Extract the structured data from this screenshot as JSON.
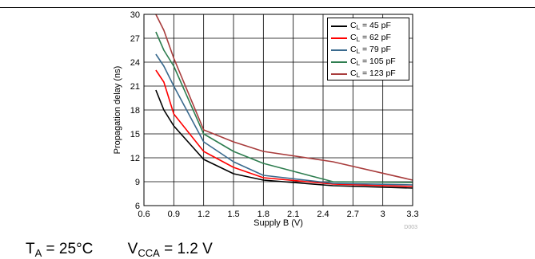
{
  "conditions": {
    "ta_label": "T",
    "ta_sub": "A",
    "ta_value": " = 25°C",
    "vcca_label": "V",
    "vcca_sub": "CCA",
    "vcca_value": " = 1.2 V"
  },
  "chart_data": {
    "type": "line",
    "title": "",
    "xlabel": "Supply B (V)",
    "ylabel": "Propagation delay (ns)",
    "xlim": [
      0.6,
      3.3
    ],
    "ylim": [
      6,
      30
    ],
    "xticks": [
      "0.6",
      "0.9",
      "1.2",
      "1.5",
      "1.8",
      "2.1",
      "2.4",
      "2.7",
      "3",
      "3.3"
    ],
    "yticks": [
      "6",
      "9",
      "12",
      "15",
      "18",
      "21",
      "24",
      "27",
      "30"
    ],
    "grid": true,
    "legend_position": "top-right",
    "figure_id": "D003",
    "series": [
      {
        "legend_prefix": "C",
        "legend_sub": "L",
        "legend_value": " = 45 pF",
        "color": "#000000",
        "x": [
          0.72,
          0.8,
          0.9,
          1.2,
          1.5,
          1.8,
          2.5,
          3.3
        ],
        "y": [
          20.5,
          18.0,
          16.0,
          11.8,
          10.0,
          9.2,
          8.5,
          8.2
        ]
      },
      {
        "legend_prefix": "C",
        "legend_sub": "L",
        "legend_value": " = 62 pF",
        "color": "#ff0000",
        "x": [
          0.72,
          0.8,
          0.9,
          1.2,
          1.5,
          1.8,
          2.5,
          3.3
        ],
        "y": [
          23.0,
          21.5,
          17.5,
          12.8,
          10.8,
          9.5,
          8.7,
          8.4
        ]
      },
      {
        "legend_prefix": "C",
        "legend_sub": "L",
        "legend_value": " = 79 pF",
        "color": "#3a6a8e",
        "x": [
          0.72,
          0.8,
          0.9,
          1.2,
          1.5,
          1.8,
          2.5,
          3.3
        ],
        "y": [
          25.0,
          23.5,
          21.0,
          14.0,
          11.5,
          9.8,
          8.8,
          8.6
        ]
      },
      {
        "legend_prefix": "C",
        "legend_sub": "L",
        "legend_value": " = 105 pF",
        "color": "#2e7d4f",
        "x": [
          0.72,
          0.8,
          0.9,
          1.2,
          1.5,
          1.8,
          2.5,
          3.3
        ],
        "y": [
          27.8,
          25.5,
          23.5,
          15.0,
          12.8,
          11.3,
          9.0,
          8.9
        ]
      },
      {
        "legend_prefix": "C",
        "legend_sub": "L",
        "legend_value": " = 123 pF",
        "color": "#a83c3c",
        "x": [
          0.72,
          0.8,
          0.9,
          1.2,
          1.5,
          1.8,
          2.5,
          3.3
        ],
        "y": [
          30.0,
          28.0,
          24.5,
          15.5,
          14.0,
          12.8,
          11.5,
          9.2
        ]
      }
    ]
  }
}
